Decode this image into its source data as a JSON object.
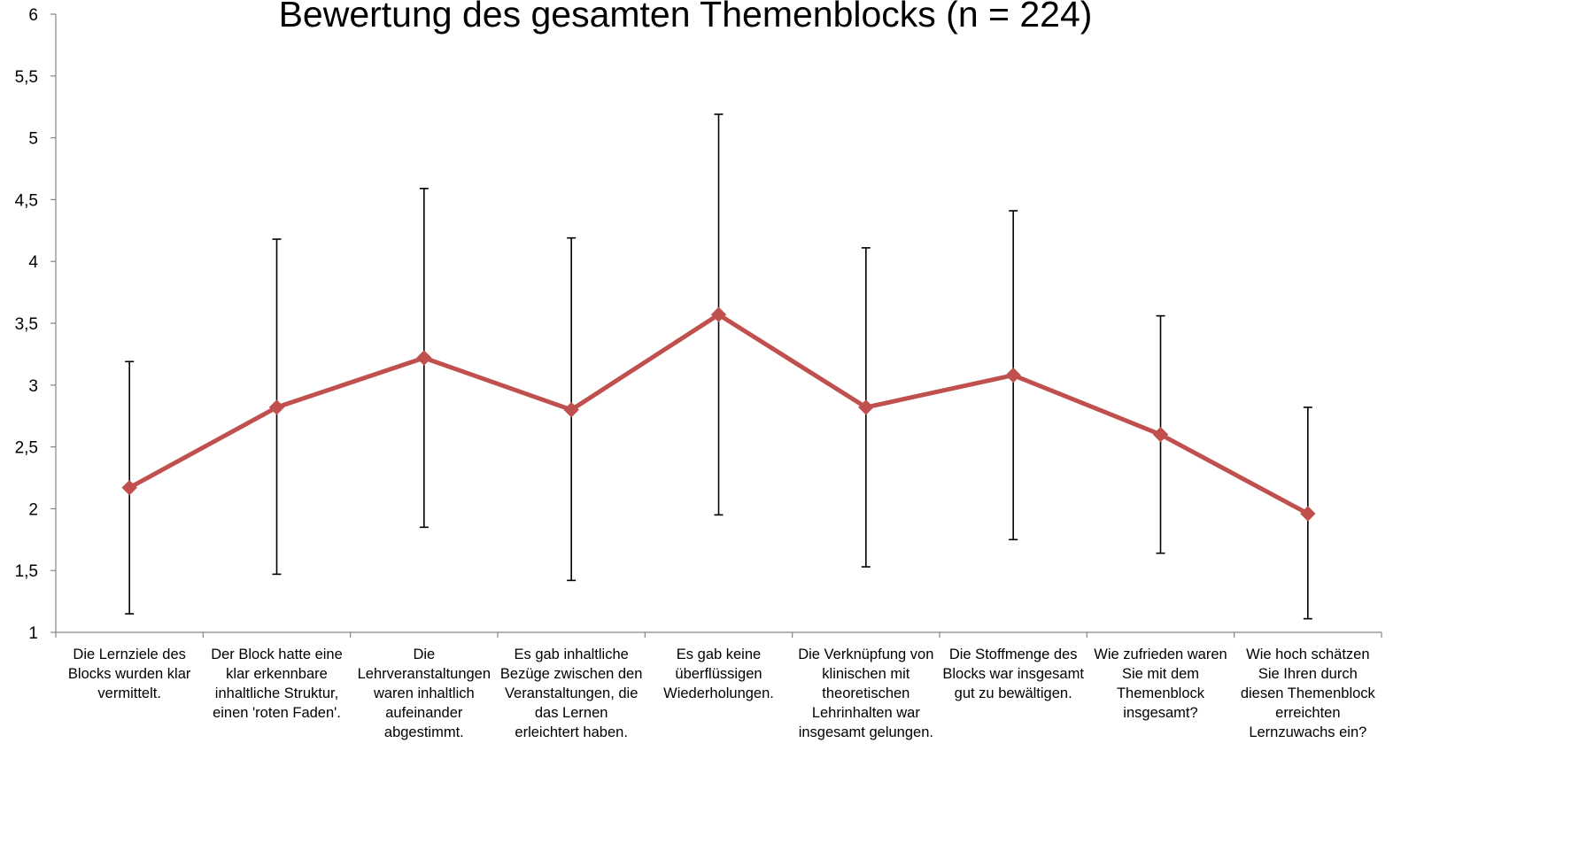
{
  "chart_data": {
    "type": "line",
    "title": "Bewertung des gesamten Themenblocks (n = 224)",
    "xlabel": "",
    "ylabel": "",
    "ylim": [
      1,
      6
    ],
    "y_ticks": [
      "1",
      "1,5",
      "2",
      "2,5",
      "3",
      "3,5",
      "4",
      "4,5",
      "5",
      "5,5",
      "6"
    ],
    "grid": false,
    "legend": "none",
    "line_color": "#C0504D",
    "error_bar_color": "#000000",
    "categories": [
      [
        "Die Lernziele des",
        "Blocks wurden klar",
        "vermittelt."
      ],
      [
        "Der Block hatte eine",
        "klar erkennbare",
        "inhaltliche Struktur,",
        "einen 'roten Faden'."
      ],
      [
        "Die",
        "Lehrveranstaltungen",
        "waren inhaltlich",
        "aufeinander",
        "abgestimmt."
      ],
      [
        "Es gab inhaltliche",
        "Bezüge zwischen den",
        "Veranstaltungen, die",
        "das Lernen",
        "erleichtert haben."
      ],
      [
        "Es gab keine",
        "überflüssigen",
        "Wiederholungen."
      ],
      [
        "Die Verknüpfung von",
        "klinischen mit",
        "theoretischen",
        "Lehrinhalten war",
        "insgesamt gelungen."
      ],
      [
        "Die Stoffmenge des",
        "Blocks war insgesamt",
        "gut zu bewältigen."
      ],
      [
        "Wie zufrieden waren",
        "Sie mit dem",
        "Themenblock",
        "insgesamt?"
      ],
      [
        "Wie hoch schätzen",
        "Sie Ihren durch",
        "diesen Themenblock",
        "erreichten",
        "Lernzuwachs ein?"
      ]
    ],
    "series": [
      {
        "values": [
          2.17,
          2.82,
          3.22,
          2.8,
          3.57,
          2.82,
          3.08,
          2.6,
          1.96
        ],
        "error_low": [
          1.15,
          1.47,
          1.85,
          1.42,
          1.95,
          1.53,
          1.75,
          1.64,
          1.11
        ],
        "error_high": [
          3.19,
          4.18,
          4.59,
          4.19,
          5.19,
          4.11,
          4.41,
          3.56,
          2.82
        ]
      }
    ]
  }
}
